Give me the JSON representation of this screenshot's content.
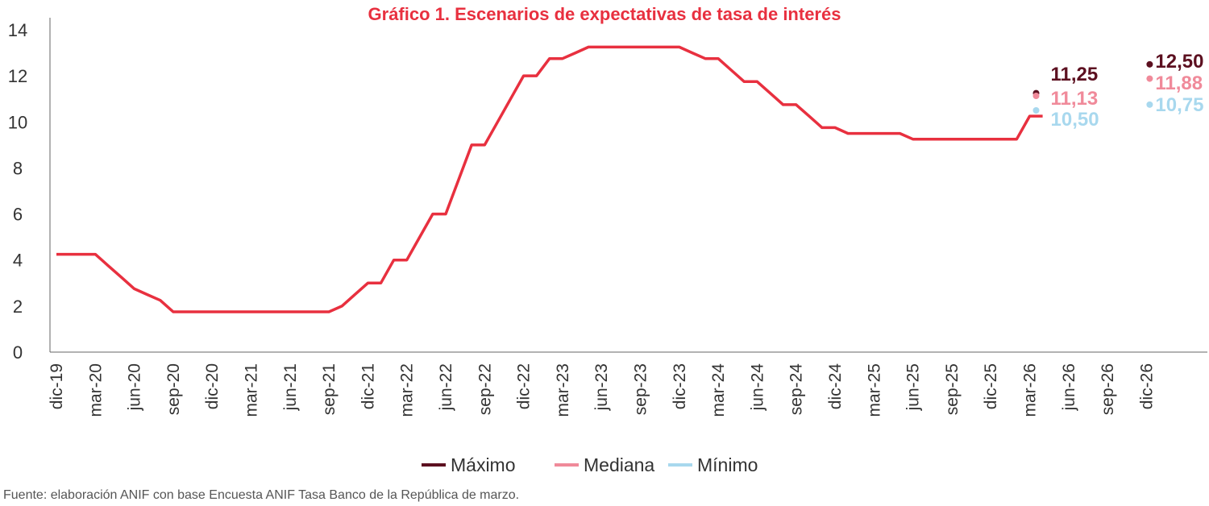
{
  "colors": {
    "series": "#E8303F",
    "maximo": "#5C1020",
    "mediana": "#F08A9A",
    "minimo": "#A8D8EE",
    "axis": "#666666",
    "text": "#333333"
  },
  "source": "Fuente: elaboración ANIF con base Encuesta ANIF Tasa Banco de la República de marzo.",
  "chart_data": {
    "type": "line",
    "title": "Gráfico 1. Escenarios de expectativas de tasa de interés",
    "xlabel": "",
    "ylabel": "",
    "ylim": [
      0,
      14
    ],
    "y_ticks": [
      "0",
      "2",
      "4",
      "6",
      "8",
      "10",
      "12",
      "14"
    ],
    "grid": false,
    "legend_position": "bottom",
    "x_ticks": [
      "dic-19",
      "mar-20",
      "jun-20",
      "sep-20",
      "dic-20",
      "mar-21",
      "jun-21",
      "sep-21",
      "dic-21",
      "mar-22",
      "jun-22",
      "sep-22",
      "dic-22",
      "mar-23",
      "jun-23",
      "sep-23",
      "dic-23",
      "mar-24",
      "jun-24",
      "sep-24",
      "dic-24",
      "mar-25",
      "jun-25",
      "sep-25",
      "dic-25",
      "mar-26",
      "jun-26",
      "sep-26",
      "dic-26"
    ],
    "series": [
      {
        "values": [
          4.25,
          4.25,
          4.25,
          4.25,
          3.75,
          3.25,
          2.75,
          2.5,
          2.25,
          1.75,
          1.75,
          1.75,
          1.75,
          1.75,
          1.75,
          1.75,
          1.75,
          1.75,
          1.75,
          1.75,
          1.75,
          1.75,
          2.0,
          2.5,
          3.0,
          3.0,
          4.0,
          4.0,
          5.0,
          6.0,
          6.0,
          7.5,
          9.0,
          9.0,
          10.0,
          11.0,
          12.0,
          12.0,
          12.75,
          12.75,
          13.0,
          13.25,
          13.25,
          13.25,
          13.25,
          13.25,
          13.25,
          13.25,
          13.25,
          13.0,
          12.75,
          12.75,
          12.25,
          11.75,
          11.75,
          11.25,
          10.75,
          10.75,
          10.25,
          9.75,
          9.75,
          9.5,
          9.5,
          9.5,
          9.5,
          9.5,
          9.25,
          9.25,
          9.25,
          9.25,
          9.25,
          9.25,
          9.25,
          9.25,
          9.25,
          10.25,
          10.25
        ]
      }
    ],
    "scenarios": [
      {
        "name": "Máximo",
        "points": [
          {
            "x": "mar-26",
            "y": 11.25,
            "label": "11,25"
          },
          {
            "x": "dic-26",
            "y": 12.5,
            "label": "12,50"
          }
        ]
      },
      {
        "name": "Mediana",
        "points": [
          {
            "x": "mar-26",
            "y": 11.13,
            "label": "11,13"
          },
          {
            "x": "dic-26",
            "y": 11.88,
            "label": "11,88"
          }
        ]
      },
      {
        "name": "Mínimo",
        "points": [
          {
            "x": "mar-26",
            "y": 10.5,
            "label": "10,50"
          },
          {
            "x": "dic-26",
            "y": 10.75,
            "label": "10,75"
          }
        ]
      }
    ]
  }
}
